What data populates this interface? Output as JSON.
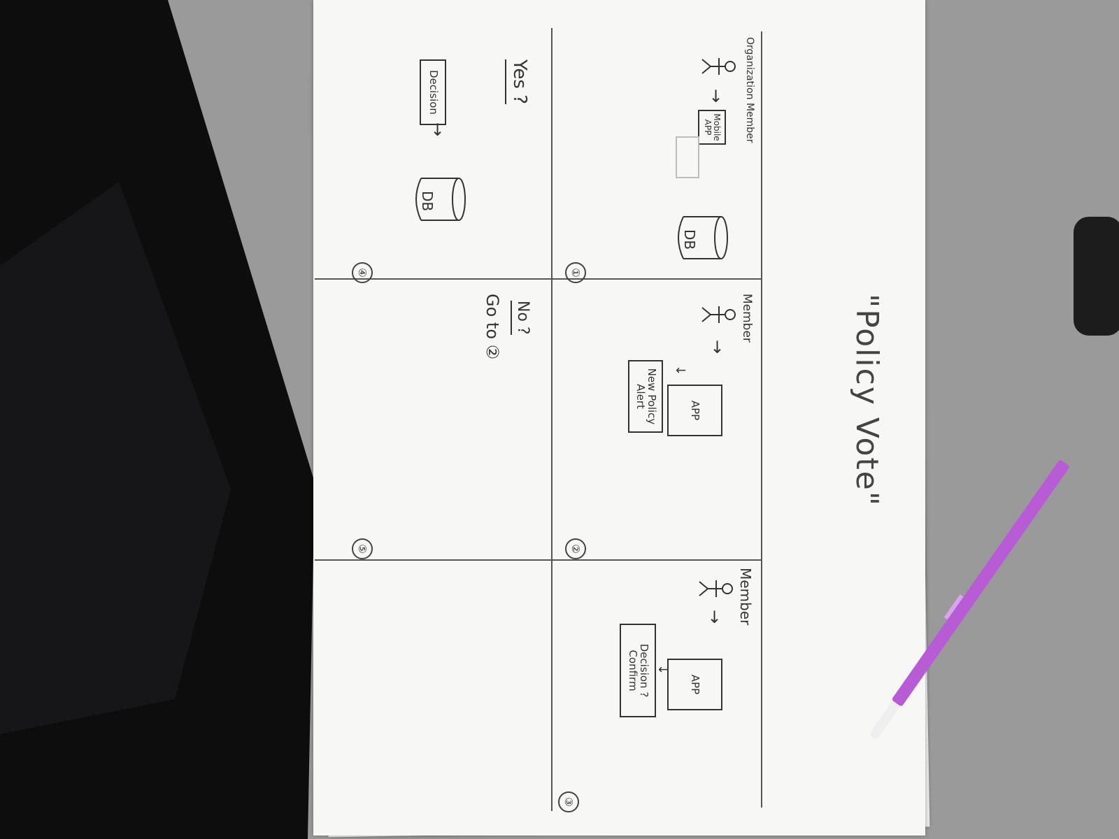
{
  "title": "\"Policy Vote\"",
  "panels": [
    {
      "number": "①",
      "actor": "Organization Member",
      "box": "Mobile APP",
      "db": "DB"
    },
    {
      "number": "②",
      "actor": "Member",
      "box": "APP",
      "alert": "New Policy Alert"
    },
    {
      "number": "③",
      "actor": "Member",
      "box": "APP",
      "alert": "Decision ? Confirm"
    },
    {
      "number": "④",
      "question": "Yes ?",
      "box": "Decision",
      "db": "DB"
    },
    {
      "number": "⑤",
      "question": "No ?",
      "goto": "Go to ②"
    }
  ]
}
